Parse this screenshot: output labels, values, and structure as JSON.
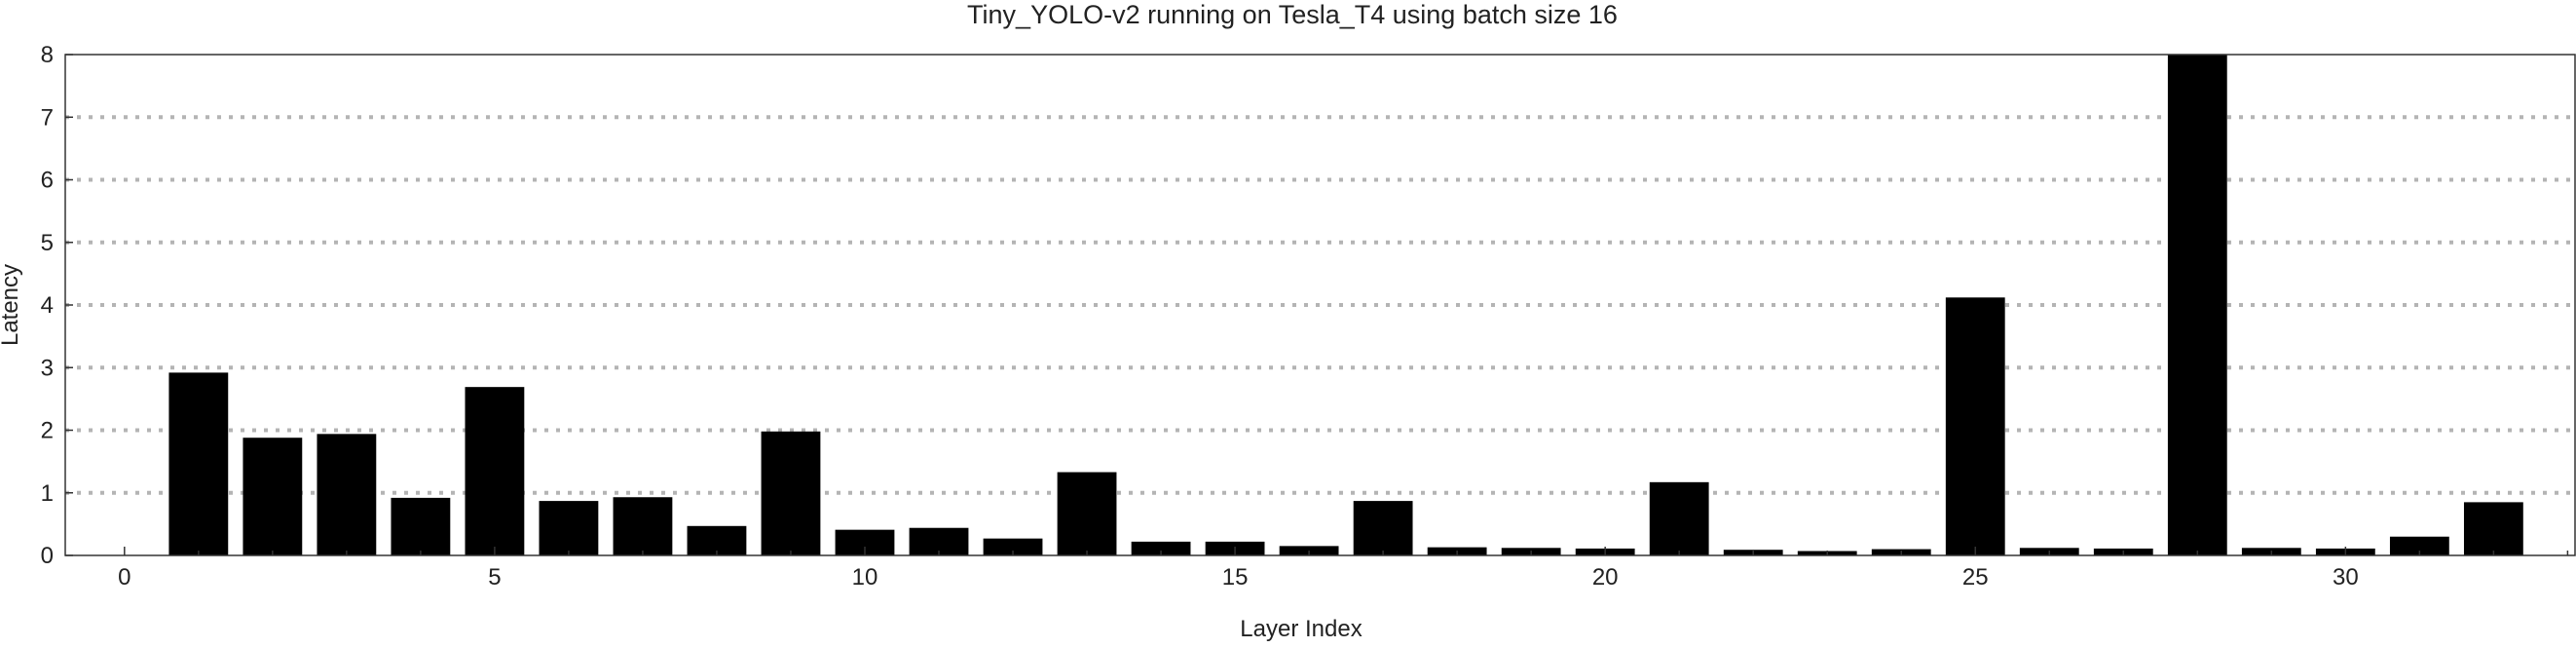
{
  "chart_data": {
    "type": "bar",
    "title": "Tiny_YOLO-v2 running on Tesla_T4 using batch size 16",
    "xlabel": "Layer Index",
    "ylabel": "Latency",
    "x": [
      1,
      2,
      3,
      4,
      5,
      6,
      7,
      8,
      9,
      10,
      11,
      12,
      13,
      14,
      15,
      16,
      17,
      18,
      19,
      20,
      21,
      22,
      23,
      24,
      25,
      26,
      27,
      28,
      29,
      30,
      31,
      32
    ],
    "values": [
      2.92,
      1.88,
      1.94,
      0.92,
      2.69,
      0.87,
      0.93,
      0.47,
      1.98,
      0.41,
      0.44,
      0.27,
      1.33,
      0.22,
      0.22,
      0.15,
      0.87,
      0.13,
      0.12,
      0.11,
      1.17,
      0.09,
      0.07,
      0.1,
      4.12,
      0.12,
      0.11,
      8.0,
      0.12,
      0.11,
      0.3,
      0.85
    ],
    "xlim": [
      -0.8,
      33.1
    ],
    "ylim": [
      0,
      8
    ],
    "xticks": [
      0,
      5,
      10,
      15,
      20,
      25,
      30
    ],
    "yticks": [
      0,
      1,
      2,
      3,
      4,
      5,
      6,
      7,
      8
    ],
    "grid": "horizontal dotted",
    "bar_color": "#000000",
    "grid_color": "#b4b4b4",
    "frame_color": "#333333"
  }
}
